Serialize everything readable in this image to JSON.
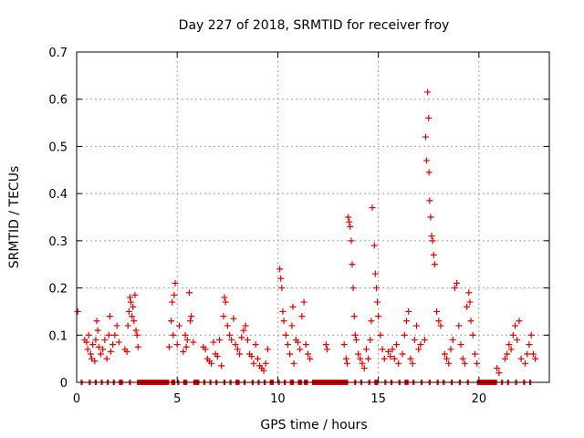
{
  "chart_data": {
    "type": "scatter",
    "title": "Day 227 of 2018, SRMTID for receiver froy",
    "xlabel": "GPS time / hours",
    "ylabel": "SRMTID / TECUs",
    "xlim": [
      0,
      23.5
    ],
    "ylim": [
      0,
      0.7
    ],
    "xticks": [
      0,
      5,
      10,
      15,
      20
    ],
    "xtick_labels": [
      "0",
      "5",
      "10",
      "15",
      "20"
    ],
    "yticks": [
      0,
      0.1,
      0.2,
      0.3,
      0.4,
      0.5,
      0.6,
      0.7
    ],
    "ytick_labels": [
      "0",
      "0.1",
      "0.2",
      "0.3",
      "0.4",
      "0.5",
      "0.6",
      "0.7"
    ],
    "grid": true,
    "marker": "+",
    "color": "#dd0000",
    "series": [
      {
        "name": "SRMTID",
        "points": [
          [
            0.05,
            0.15
          ],
          [
            0.4,
            0.09
          ],
          [
            0.5,
            0.085
          ],
          [
            0.55,
            0.07
          ],
          [
            0.6,
            0.1
          ],
          [
            0.7,
            0.06
          ],
          [
            0.75,
            0.05
          ],
          [
            0.8,
            0.08
          ],
          [
            0.9,
            0.045
          ],
          [
            0.95,
            0.09
          ],
          [
            1.0,
            0.13
          ],
          [
            1.05,
            0.11
          ],
          [
            1.1,
            0.075
          ],
          [
            1.2,
            0.06
          ],
          [
            1.3,
            0.07
          ],
          [
            1.4,
            0.09
          ],
          [
            1.5,
            0.05
          ],
          [
            1.6,
            0.1
          ],
          [
            1.65,
            0.14
          ],
          [
            1.7,
            0.065
          ],
          [
            1.8,
            0.08
          ],
          [
            1.9,
            0.1
          ],
          [
            2.0,
            0.12
          ],
          [
            2.1,
            0.085
          ],
          [
            2.4,
            0.07
          ],
          [
            2.5,
            0.065
          ],
          [
            2.55,
            0.12
          ],
          [
            2.6,
            0.15
          ],
          [
            2.65,
            0.18
          ],
          [
            2.7,
            0.17
          ],
          [
            2.75,
            0.14
          ],
          [
            2.8,
            0.16
          ],
          [
            2.85,
            0.13
          ],
          [
            2.9,
            0.185
          ],
          [
            2.95,
            0.11
          ],
          [
            3.0,
            0.1
          ],
          [
            3.05,
            0.075
          ],
          [
            4.6,
            0.075
          ],
          [
            4.7,
            0.13
          ],
          [
            4.75,
            0.17
          ],
          [
            4.8,
            0.1
          ],
          [
            4.85,
            0.185
          ],
          [
            4.9,
            0.21
          ],
          [
            5.0,
            0.08
          ],
          [
            5.1,
            0.12
          ],
          [
            5.3,
            0.065
          ],
          [
            5.4,
            0.1
          ],
          [
            5.45,
            0.075
          ],
          [
            5.5,
            0.09
          ],
          [
            5.6,
            0.19
          ],
          [
            5.65,
            0.13
          ],
          [
            5.7,
            0.14
          ],
          [
            5.8,
            0.085
          ],
          [
            6.3,
            0.075
          ],
          [
            6.4,
            0.07
          ],
          [
            6.5,
            0.05
          ],
          [
            6.6,
            0.045
          ],
          [
            6.7,
            0.04
          ],
          [
            6.8,
            0.085
          ],
          [
            6.9,
            0.06
          ],
          [
            7.0,
            0.055
          ],
          [
            7.1,
            0.09
          ],
          [
            7.2,
            0.035
          ],
          [
            7.3,
            0.14
          ],
          [
            7.35,
            0.18
          ],
          [
            7.4,
            0.17
          ],
          [
            7.5,
            0.12
          ],
          [
            7.6,
            0.1
          ],
          [
            7.7,
            0.09
          ],
          [
            7.8,
            0.135
          ],
          [
            7.9,
            0.08
          ],
          [
            8.0,
            0.07
          ],
          [
            8.1,
            0.06
          ],
          [
            8.2,
            0.095
          ],
          [
            8.3,
            0.11
          ],
          [
            8.4,
            0.12
          ],
          [
            8.5,
            0.09
          ],
          [
            8.6,
            0.06
          ],
          [
            8.7,
            0.055
          ],
          [
            8.8,
            0.04
          ],
          [
            8.9,
            0.08
          ],
          [
            9.0,
            0.05
          ],
          [
            9.1,
            0.035
          ],
          [
            9.2,
            0.03
          ],
          [
            9.3,
            0.025
          ],
          [
            9.4,
            0.04
          ],
          [
            9.5,
            0.07
          ],
          [
            10.1,
            0.24
          ],
          [
            10.15,
            0.22
          ],
          [
            10.2,
            0.2
          ],
          [
            10.25,
            0.15
          ],
          [
            10.3,
            0.13
          ],
          [
            10.4,
            0.1
          ],
          [
            10.5,
            0.08
          ],
          [
            10.6,
            0.06
          ],
          [
            10.7,
            0.12
          ],
          [
            10.75,
            0.16
          ],
          [
            10.8,
            0.04
          ],
          [
            10.9,
            0.09
          ],
          [
            11.0,
            0.085
          ],
          [
            11.1,
            0.07
          ],
          [
            11.2,
            0.14
          ],
          [
            11.3,
            0.17
          ],
          [
            11.4,
            0.08
          ],
          [
            11.5,
            0.06
          ],
          [
            11.6,
            0.05
          ],
          [
            12.4,
            0.08
          ],
          [
            12.45,
            0.07
          ],
          [
            13.3,
            0.08
          ],
          [
            13.4,
            0.05
          ],
          [
            13.45,
            0.04
          ],
          [
            13.5,
            0.35
          ],
          [
            13.55,
            0.34
          ],
          [
            13.6,
            0.33
          ],
          [
            13.65,
            0.3
          ],
          [
            13.7,
            0.25
          ],
          [
            13.75,
            0.2
          ],
          [
            13.8,
            0.14
          ],
          [
            13.85,
            0.1
          ],
          [
            13.9,
            0.09
          ],
          [
            14.0,
            0.06
          ],
          [
            14.1,
            0.05
          ],
          [
            14.2,
            0.04
          ],
          [
            14.3,
            0.03
          ],
          [
            14.4,
            0.07
          ],
          [
            14.5,
            0.05
          ],
          [
            14.6,
            0.09
          ],
          [
            14.65,
            0.13
          ],
          [
            14.7,
            0.37
          ],
          [
            14.8,
            0.29
          ],
          [
            14.85,
            0.23
          ],
          [
            14.9,
            0.2
          ],
          [
            14.95,
            0.17
          ],
          [
            15.0,
            0.14
          ],
          [
            15.1,
            0.1
          ],
          [
            15.2,
            0.07
          ],
          [
            15.3,
            0.05
          ],
          [
            15.5,
            0.065
          ],
          [
            15.6,
            0.055
          ],
          [
            15.7,
            0.07
          ],
          [
            15.8,
            0.05
          ],
          [
            15.9,
            0.08
          ],
          [
            16.0,
            0.04
          ],
          [
            16.2,
            0.06
          ],
          [
            16.3,
            0.1
          ],
          [
            16.4,
            0.13
          ],
          [
            16.5,
            0.15
          ],
          [
            16.6,
            0.05
          ],
          [
            16.7,
            0.04
          ],
          [
            16.8,
            0.09
          ],
          [
            16.9,
            0.12
          ],
          [
            17.0,
            0.07
          ],
          [
            17.1,
            0.08
          ],
          [
            17.3,
            0.09
          ],
          [
            17.35,
            0.52
          ],
          [
            17.4,
            0.47
          ],
          [
            17.45,
            0.615
          ],
          [
            17.5,
            0.56
          ],
          [
            17.52,
            0.445
          ],
          [
            17.55,
            0.385
          ],
          [
            17.6,
            0.35
          ],
          [
            17.65,
            0.31
          ],
          [
            17.7,
            0.3
          ],
          [
            17.75,
            0.27
          ],
          [
            17.8,
            0.25
          ],
          [
            17.9,
            0.15
          ],
          [
            18.0,
            0.13
          ],
          [
            18.1,
            0.12
          ],
          [
            18.3,
            0.06
          ],
          [
            18.4,
            0.05
          ],
          [
            18.5,
            0.04
          ],
          [
            18.6,
            0.07
          ],
          [
            18.7,
            0.09
          ],
          [
            18.8,
            0.2
          ],
          [
            18.9,
            0.21
          ],
          [
            19.0,
            0.12
          ],
          [
            19.1,
            0.08
          ],
          [
            19.2,
            0.05
          ],
          [
            19.3,
            0.04
          ],
          [
            19.4,
            0.16
          ],
          [
            19.5,
            0.19
          ],
          [
            19.55,
            0.17
          ],
          [
            19.6,
            0.13
          ],
          [
            19.7,
            0.1
          ],
          [
            19.8,
            0.06
          ],
          [
            19.9,
            0.04
          ],
          [
            20.9,
            0.03
          ],
          [
            21.0,
            0.02
          ],
          [
            21.3,
            0.05
          ],
          [
            21.4,
            0.06
          ],
          [
            21.5,
            0.08
          ],
          [
            21.6,
            0.07
          ],
          [
            21.7,
            0.1
          ],
          [
            21.8,
            0.12
          ],
          [
            21.9,
            0.09
          ],
          [
            22.0,
            0.13
          ],
          [
            22.1,
            0.05
          ],
          [
            22.3,
            0.04
          ],
          [
            22.4,
            0.06
          ],
          [
            22.5,
            0.08
          ],
          [
            22.6,
            0.1
          ],
          [
            22.7,
            0.06
          ],
          [
            22.8,
            0.05
          ]
        ],
        "zero_segments": [
          [
            0.2,
            0.3
          ],
          [
            0.6,
            0.7
          ],
          [
            0.9,
            1.0
          ],
          [
            1.2,
            1.3
          ],
          [
            1.5,
            1.6
          ],
          [
            1.8,
            1.9
          ],
          [
            2.1,
            2.3
          ],
          [
            2.6,
            2.7
          ],
          [
            3.0,
            3.1
          ],
          [
            3.1,
            4.6
          ],
          [
            4.7,
            4.9
          ],
          [
            5.0,
            5.1
          ],
          [
            5.3,
            5.5
          ],
          [
            5.8,
            6.1
          ],
          [
            6.3,
            6.4
          ],
          [
            6.6,
            6.7
          ],
          [
            6.9,
            7.0
          ],
          [
            7.3,
            7.4
          ],
          [
            7.6,
            7.7
          ],
          [
            7.9,
            8.1
          ],
          [
            8.3,
            8.4
          ],
          [
            8.7,
            8.8
          ],
          [
            9.0,
            9.1
          ],
          [
            9.3,
            9.4
          ],
          [
            9.6,
            9.8
          ],
          [
            10.0,
            10.1
          ],
          [
            10.3,
            10.4
          ],
          [
            10.6,
            10.8
          ],
          [
            11.0,
            11.2
          ],
          [
            11.3,
            11.5
          ],
          [
            11.7,
            13.5
          ],
          [
            13.8,
            13.9
          ],
          [
            14.1,
            14.2
          ],
          [
            14.5,
            14.6
          ],
          [
            14.8,
            15.0
          ],
          [
            15.3,
            15.4
          ],
          [
            15.6,
            15.7
          ],
          [
            16.0,
            16.1
          ],
          [
            16.3,
            16.5
          ],
          [
            16.7,
            16.8
          ],
          [
            17.1,
            17.2
          ],
          [
            17.5,
            17.6
          ],
          [
            17.9,
            18.0
          ],
          [
            18.2,
            18.3
          ],
          [
            18.6,
            18.7
          ],
          [
            19.0,
            19.1
          ],
          [
            19.4,
            19.5
          ],
          [
            19.9,
            20.9
          ],
          [
            21.1,
            21.2
          ],
          [
            21.4,
            21.5
          ],
          [
            21.8,
            21.9
          ],
          [
            22.2,
            22.3
          ],
          [
            22.5,
            22.6
          ]
        ]
      }
    ]
  }
}
